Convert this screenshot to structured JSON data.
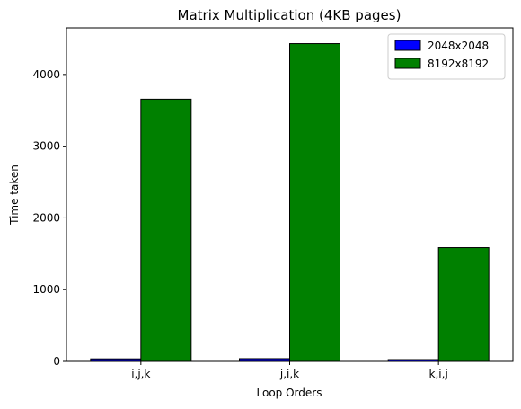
{
  "chart_data": {
    "type": "bar",
    "title": "Matrix Multiplication (4KB pages)",
    "xlabel": "Loop Orders",
    "ylabel": "Time taken",
    "categories": [
      "i,j,k",
      "j,i,k",
      "k,i,j"
    ],
    "series": [
      {
        "name": "2048x2048",
        "color": "#0000ff",
        "values": [
          35,
          38,
          25
        ]
      },
      {
        "name": "8192x8192",
        "color": "#008000",
        "values": [
          3655,
          4430,
          1585
        ]
      }
    ],
    "ylim": [
      0,
      4650
    ],
    "yticks": [
      0,
      1000,
      2000,
      3000,
      4000
    ],
    "grid": false,
    "legend_position": "top-right"
  }
}
